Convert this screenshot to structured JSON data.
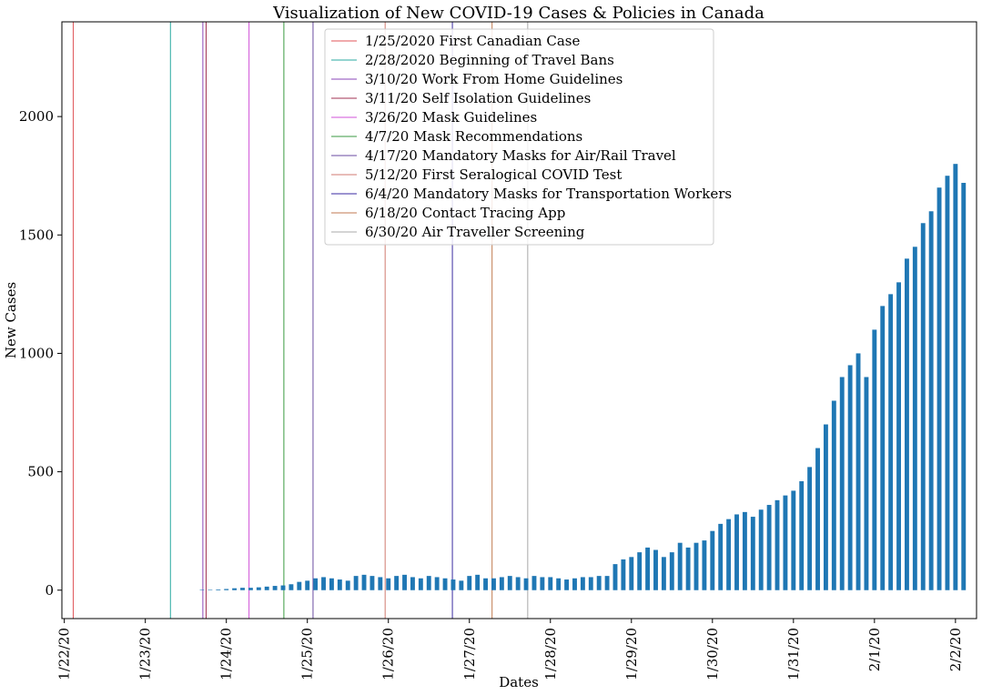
{
  "chart_data": {
    "type": "bar",
    "title": "Visualization of New COVID-19 Cases & Policies in Canada",
    "xlabel": "Dates",
    "ylabel": "New Cases",
    "ylim": [
      -120,
      2400
    ],
    "yticks": [
      0,
      500,
      1000,
      1500,
      2000
    ],
    "xticks": [
      {
        "label": "1/22/20",
        "index": 0
      },
      {
        "label": "1/23/20",
        "index": 10
      },
      {
        "label": "1/24/20",
        "index": 20
      },
      {
        "label": "1/25/20",
        "index": 30
      },
      {
        "label": "1/26/20",
        "index": 40
      },
      {
        "label": "1/27/20",
        "index": 50
      },
      {
        "label": "1/28/20",
        "index": 60
      },
      {
        "label": "1/29/20",
        "index": 70
      },
      {
        "label": "1/30/20",
        "index": 80
      },
      {
        "label": "1/31/20",
        "index": 90
      },
      {
        "label": "2/1/20",
        "index": 100
      },
      {
        "label": "2/2/20",
        "index": 110
      }
    ],
    "x_range": [
      -0.3,
      112.6
    ],
    "bar_color": "#1f77b4",
    "values": [
      0,
      0,
      0,
      0,
      0,
      0,
      0,
      0,
      0,
      0,
      0,
      0,
      0,
      0,
      0,
      0,
      0,
      2,
      2,
      3,
      5,
      8,
      10,
      10,
      12,
      15,
      18,
      20,
      25,
      35,
      40,
      50,
      55,
      50,
      45,
      40,
      60,
      65,
      60,
      55,
      50,
      60,
      65,
      55,
      50,
      60,
      55,
      50,
      45,
      40,
      60,
      65,
      50,
      50,
      55,
      60,
      55,
      50,
      60,
      55,
      55,
      50,
      45,
      50,
      55,
      55,
      60,
      60,
      110,
      130,
      140,
      160,
      180,
      170,
      140,
      160,
      200,
      180,
      200,
      210,
      250,
      280,
      300,
      320,
      330,
      310,
      340,
      360,
      380,
      400,
      420,
      460,
      520,
      600,
      700,
      800,
      900,
      950,
      1000,
      900,
      1100,
      1200,
      1250,
      1300,
      1400,
      1450,
      1550,
      1600,
      1700,
      1750,
      1800,
      1720
    ],
    "policies": [
      {
        "label": "1/25/2020 First Canadian Case",
        "x": 1.1,
        "color": "#e0555a"
      },
      {
        "label": "2/28/2020 Beginning of Travel Bans",
        "x": 13.1,
        "color": "#2aa9a0"
      },
      {
        "label": "3/10/20 Work From Home Guidelines",
        "x": 17.1,
        "color": "#8a46b8"
      },
      {
        "label": "3/11/20 Self Isolation Guidelines",
        "x": 17.5,
        "color": "#a03050"
      },
      {
        "label": "3/26/20 Mask Guidelines",
        "x": 22.8,
        "color": "#d050d8"
      },
      {
        "label": "4/7/20 Mask Recommendations",
        "x": 27.1,
        "color": "#3a9a40"
      },
      {
        "label": "4/17/20 Mandatory Masks for Air/Rail Travel",
        "x": 30.7,
        "color": "#6a4aa0"
      },
      {
        "label": "5/12/20 First Seralogical COVID Test",
        "x": 39.6,
        "color": "#d07a70"
      },
      {
        "label": "6/4/20 Mandatory Masks for Transportation Workers",
        "x": 47.9,
        "color": "#3a2aa0"
      },
      {
        "label": "6/18/20 Contact Tracing App",
        "x": 52.8,
        "color": "#c07a50"
      },
      {
        "label": "6/30/20 Air Traveller Screening",
        "x": 57.2,
        "color": "#a8a8a8"
      }
    ],
    "legend_position": "upper-center",
    "grid": false
  }
}
